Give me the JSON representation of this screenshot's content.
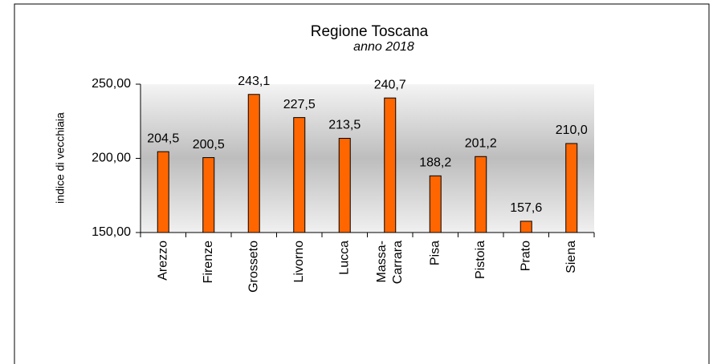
{
  "chart_data": {
    "type": "bar",
    "title": "Regione Toscana",
    "subtitle": "anno 2018",
    "y_label": "indice di vecchiaia",
    "categories": [
      "Arezzo",
      "Firenze",
      "Grosseto",
      "Livorno",
      "Lucca",
      "Massa-Carrara",
      "Pisa",
      "Pistoia",
      "Prato",
      "Siena"
    ],
    "values": [
      204.5,
      200.5,
      243.1,
      227.5,
      213.5,
      240.7,
      188.2,
      201.2,
      157.6,
      210.0
    ],
    "value_labels": [
      "204,5",
      "200,5",
      "243,1",
      "227,5",
      "213,5",
      "240,7",
      "188,2",
      "201,2",
      "157,6",
      "210,0"
    ],
    "color": "#ff6600",
    "ylim": [
      150,
      250
    ],
    "yticks": [
      {
        "value": 150,
        "label": "150,00"
      },
      {
        "value": 200,
        "label": "200,00"
      },
      {
        "value": 250,
        "label": "250,00"
      }
    ]
  }
}
